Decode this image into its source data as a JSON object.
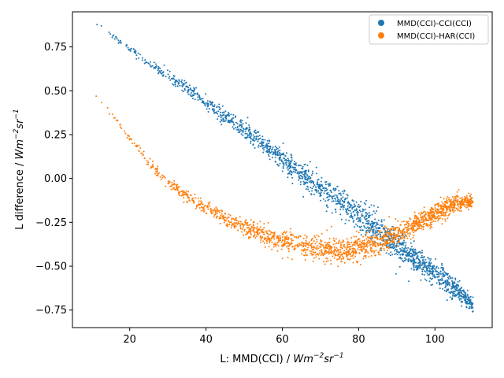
{
  "chart_data": {
    "type": "scatter",
    "title": "",
    "xlabel": {
      "prefix": "L: MMD(CCI) / ",
      "unit_base": "Wm",
      "unit_exp1": "−2",
      "unit_mid": "sr",
      "unit_exp2": "−1"
    },
    "ylabel": {
      "prefix": "L difference / ",
      "unit_base": "Wm",
      "unit_exp1": "−2",
      "unit_mid": "sr",
      "unit_exp2": "−1"
    },
    "xlim": [
      5,
      115
    ],
    "ylim": [
      -0.85,
      0.95
    ],
    "x_ticks": [
      20,
      40,
      60,
      80,
      100
    ],
    "x_tick_labels": [
      "20",
      "40",
      "60",
      "80",
      "100"
    ],
    "y_ticks": [
      -0.75,
      -0.5,
      -0.25,
      0.0,
      0.25,
      0.5,
      0.75
    ],
    "y_tick_labels": [
      "−0.75",
      "−0.50",
      "−0.25",
      "0.00",
      "0.25",
      "0.50",
      "0.75"
    ],
    "grid": false,
    "legend_position": "top-right",
    "series": [
      {
        "name": "MMD(CCI)-CCI(CCI)",
        "color": "#1f77b4",
        "x": [
          10,
          15,
          20,
          25,
          30,
          35,
          40,
          45,
          50,
          55,
          60,
          65,
          70,
          75,
          80,
          85,
          90,
          95,
          100,
          105,
          110
        ],
        "y": [
          0.9,
          0.82,
          0.74,
          0.66,
          0.58,
          0.51,
          0.43,
          0.36,
          0.28,
          0.2,
          0.11,
          0.03,
          -0.05,
          -0.13,
          -0.21,
          -0.29,
          -0.38,
          -0.46,
          -0.54,
          -0.62,
          -0.72
        ],
        "spread": [
          0.01,
          0.015,
          0.02,
          0.025,
          0.03,
          0.035,
          0.04,
          0.045,
          0.05,
          0.055,
          0.06,
          0.065,
          0.07,
          0.075,
          0.08,
          0.08,
          0.08,
          0.075,
          0.07,
          0.06,
          0.04
        ]
      },
      {
        "name": "MMD(CCI)-HAR(CCI)",
        "color": "#ff7f0e",
        "x": [
          10,
          15,
          20,
          25,
          30,
          35,
          40,
          45,
          50,
          55,
          60,
          65,
          70,
          75,
          80,
          85,
          90,
          95,
          100,
          105,
          110
        ],
        "y": [
          0.5,
          0.37,
          0.23,
          0.09,
          -0.02,
          -0.1,
          -0.17,
          -0.23,
          -0.28,
          -0.32,
          -0.36,
          -0.38,
          -0.4,
          -0.41,
          -0.4,
          -0.37,
          -0.32,
          -0.26,
          -0.2,
          -0.14,
          -0.13
        ],
        "spread": [
          0.01,
          0.015,
          0.02,
          0.025,
          0.03,
          0.035,
          0.04,
          0.045,
          0.05,
          0.055,
          0.06,
          0.065,
          0.07,
          0.07,
          0.07,
          0.07,
          0.065,
          0.06,
          0.055,
          0.05,
          0.03
        ]
      }
    ]
  }
}
